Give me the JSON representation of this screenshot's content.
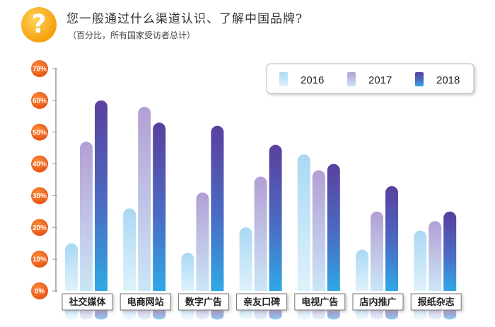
{
  "header": {
    "icon": "question-icon",
    "icon_glyph": "?",
    "title": "您一般通过什么渠道认识、了解中国品牌?",
    "subtitle": "（百分比，所有国家受访者总计）"
  },
  "chart_data": {
    "type": "bar",
    "title": "您一般通过什么渠道认识、了解中国品牌?",
    "subtitle": "（百分比，所有国家受访者总计）",
    "categories": [
      "社交媒体",
      "电商网站",
      "数字广告",
      "亲友口碑",
      "电视广告",
      "店内推广",
      "报纸杂志"
    ],
    "series": [
      {
        "name": "2016",
        "values": [
          15,
          26,
          12,
          20,
          43,
          13,
          19
        ],
        "color": "#9fd6f2"
      },
      {
        "name": "2017",
        "values": [
          47,
          58,
          31,
          36,
          38,
          25,
          22
        ],
        "color": "#b3a8d6"
      },
      {
        "name": "2018",
        "values": [
          60,
          53,
          52,
          46,
          40,
          33,
          25
        ],
        "color": "#5a45a8"
      }
    ],
    "y_ticks": [
      "0%",
      "10%",
      "20%",
      "30%",
      "40%",
      "50%",
      "60%",
      "70%"
    ],
    "ylim": [
      0,
      70
    ],
    "legend_position": "top-right"
  }
}
